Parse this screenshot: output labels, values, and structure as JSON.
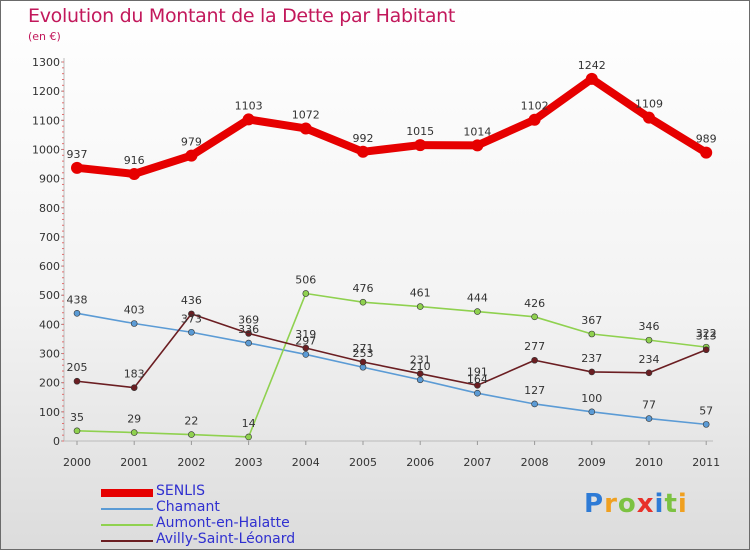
{
  "title": "Evolution du Montant de la Dette par Habitant",
  "subtitle": "(en €)",
  "logo": {
    "letters": [
      "P",
      "r",
      "o",
      "x",
      "i",
      "t",
      "i"
    ],
    "colors": [
      "#2e7bd6",
      "#f0a020",
      "#7cc242",
      "#e8312a",
      "#2e7bd6",
      "#7cc242",
      "#f0a020"
    ]
  },
  "chart_data": {
    "type": "line",
    "title": "Evolution du Montant de la Dette par Habitant",
    "subtitle": "(en €)",
    "x": [
      "2000",
      "2001",
      "2002",
      "2003",
      "2004",
      "2005",
      "2006",
      "2007",
      "2008",
      "2009",
      "2010",
      "2011"
    ],
    "ylim": [
      0,
      1300
    ],
    "yticks": [
      0,
      100,
      200,
      300,
      400,
      500,
      600,
      700,
      800,
      900,
      1000,
      1100,
      1200,
      1300
    ],
    "grid": false,
    "legend_position": "bottom-left",
    "series": [
      {
        "name": "SENLIS",
        "color": "#e60000",
        "values": [
          937,
          916,
          979,
          1103,
          1072,
          992,
          1015,
          1014,
          1102,
          1242,
          1109,
          989
        ]
      },
      {
        "name": "Chamant",
        "color": "#5b9bd5",
        "values": [
          438,
          403,
          373,
          336,
          297,
          253,
          210,
          164,
          127,
          100,
          77,
          57
        ]
      },
      {
        "name": "Aumont-en-Halatte",
        "color": "#8fd14f",
        "values": [
          35,
          29,
          22,
          14,
          506,
          476,
          461,
          444,
          426,
          367,
          346,
          322
        ]
      },
      {
        "name": "Avilly-Saint-Léonard",
        "color": "#6b1e22",
        "values": [
          205,
          183,
          436,
          369,
          319,
          271,
          231,
          191,
          277,
          237,
          234,
          313
        ]
      }
    ]
  }
}
